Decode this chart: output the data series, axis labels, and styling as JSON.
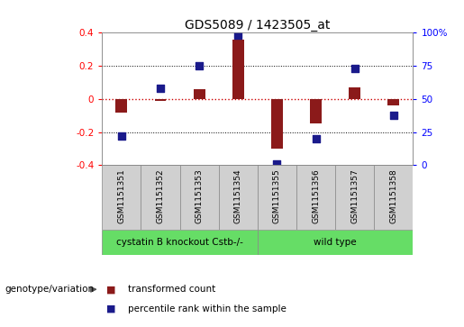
{
  "title": "GDS5089 / 1423505_at",
  "samples": [
    "GSM1151351",
    "GSM1151352",
    "GSM1151353",
    "GSM1151354",
    "GSM1151355",
    "GSM1151356",
    "GSM1151357",
    "GSM1151358"
  ],
  "transformed_count": [
    -0.08,
    -0.01,
    0.06,
    0.36,
    -0.3,
    -0.15,
    0.07,
    -0.04
  ],
  "percentile_rank": [
    22,
    58,
    75,
    98,
    1,
    20,
    73,
    38
  ],
  "ylim_left": [
    -0.4,
    0.4
  ],
  "ylim_right": [
    0,
    100
  ],
  "yticks_left": [
    -0.4,
    -0.2,
    0.0,
    0.2,
    0.4
  ],
  "yticks_right": [
    0,
    25,
    50,
    75,
    100
  ],
  "yticklabels_left": [
    "-0.4",
    "-0.2",
    "0",
    "0.2",
    "0.4"
  ],
  "yticklabels_right": [
    "0",
    "25",
    "50",
    "75",
    "100%"
  ],
  "bar_color": "#8b1a1a",
  "dot_color": "#1a1a8b",
  "hline_color": "#cc0000",
  "grid_color": "#000000",
  "background_color": "#ffffff",
  "label_genotype": "genotype/variation",
  "legend_bar": "transformed count",
  "legend_dot": "percentile rank within the sample",
  "group1_label": "cystatin B knockout Cstb-/-",
  "group2_label": "wild type",
  "group_color": "#66dd66",
  "title_fontsize": 10,
  "tick_fontsize": 7.5,
  "label_fontsize": 7.5,
  "sample_label_fontsize": 6.5,
  "group_label_fontsize": 7.5,
  "bar_width": 0.3,
  "dot_size": 30
}
